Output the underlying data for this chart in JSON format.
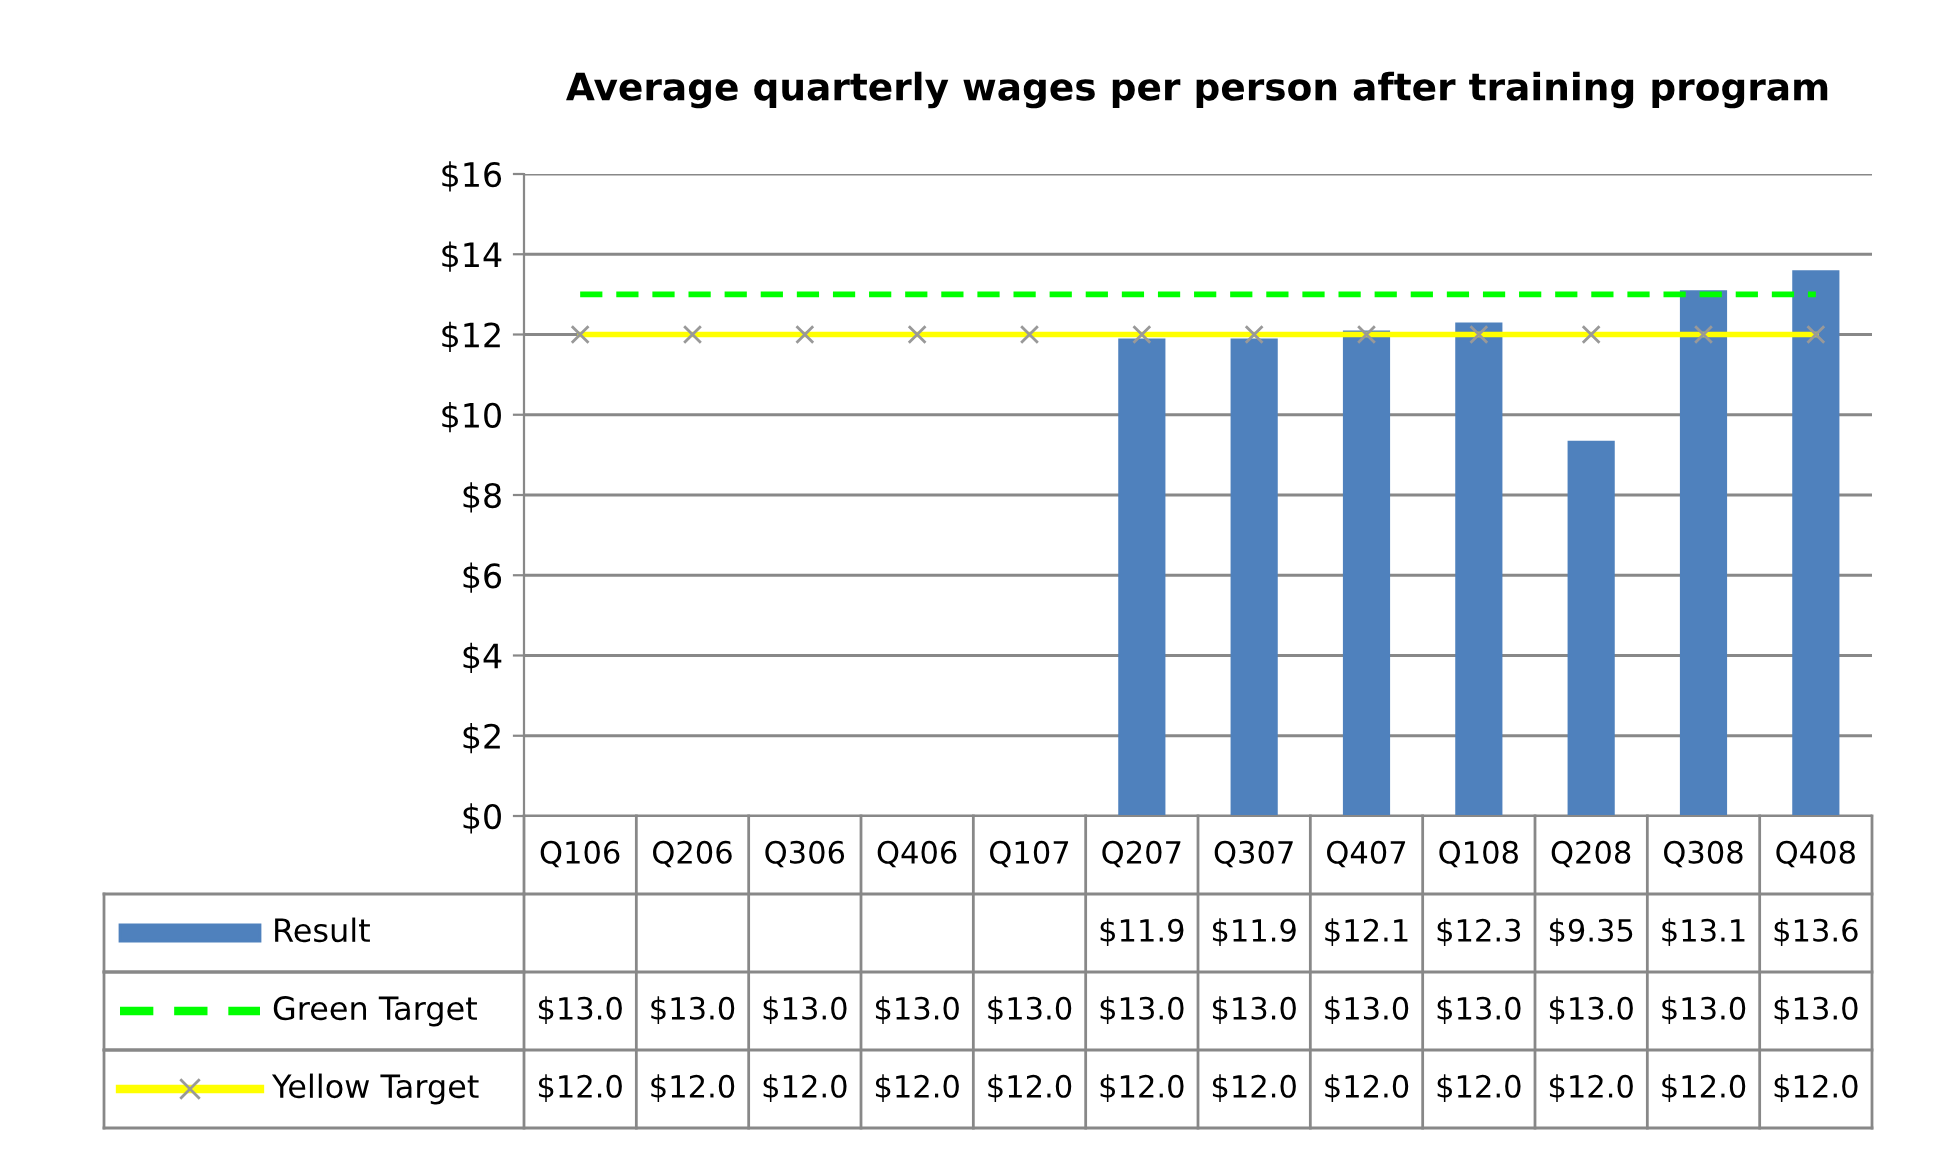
{
  "chart_data": {
    "type": "bar",
    "title": "Average quarterly wages per person after training program",
    "categories": [
      "Q106",
      "Q206",
      "Q306",
      "Q406",
      "Q107",
      "Q207",
      "Q307",
      "Q407",
      "Q108",
      "Q208",
      "Q308",
      "Q408"
    ],
    "series": [
      {
        "name": "Result",
        "color": "#4f81bd",
        "values": [
          null,
          null,
          null,
          null,
          null,
          11.9,
          11.9,
          12.1,
          12.3,
          9.35,
          13.1,
          13.6
        ],
        "value_labels": [
          null,
          null,
          null,
          null,
          null,
          "$11.9",
          "$11.9",
          "$12.1",
          "$12.3",
          "$9.35",
          "$13.1",
          "$13.6"
        ]
      },
      {
        "name": "Green Target",
        "type": "line",
        "color": "#00ff00",
        "line_style": "dashed",
        "marker": "none",
        "values": [
          13,
          13,
          13,
          13,
          13,
          13,
          13,
          13,
          13,
          13,
          13,
          13
        ],
        "value_labels": [
          "$13.0",
          "$13.0",
          "$13.0",
          "$13.0",
          "$13.0",
          "$13.0",
          "$13.0",
          "$13.0",
          "$13.0",
          "$13.0",
          "$13.0",
          "$13.0"
        ]
      },
      {
        "name": "Yellow Target",
        "type": "line",
        "color": "#ffff00",
        "line_style": "solid",
        "marker": "cross",
        "values": [
          12,
          12,
          12,
          12,
          12,
          12,
          12,
          12,
          12,
          12,
          12,
          12
        ],
        "value_labels": [
          "$12.0",
          "$12.0",
          "$12.0",
          "$12.0",
          "$12.0",
          "$12.0",
          "$12.0",
          "$12.0",
          "$12.0",
          "$12.0",
          "$12.0",
          "$12.0"
        ]
      }
    ],
    "ylim": [
      0,
      16
    ],
    "yticks": [
      {
        "value": 0,
        "label": "$0"
      },
      {
        "value": 2,
        "label": "$2"
      },
      {
        "value": 4,
        "label": "$4"
      },
      {
        "value": 6,
        "label": "$6"
      },
      {
        "value": 8,
        "label": "$8"
      },
      {
        "value": 10,
        "label": "$10"
      },
      {
        "value": 12,
        "label": "$12"
      },
      {
        "value": 14,
        "label": "$14"
      },
      {
        "value": 16,
        "label": "$16"
      }
    ],
    "grid": "y",
    "legend": "bottom"
  }
}
